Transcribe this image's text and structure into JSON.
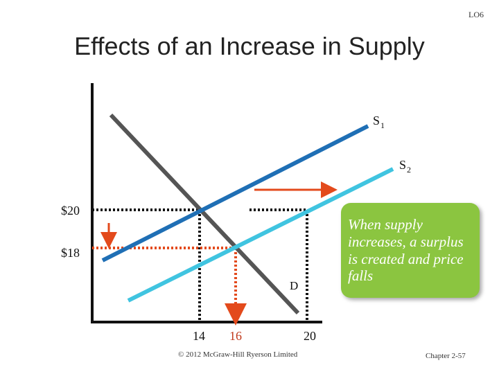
{
  "header": {
    "lo": "LO6"
  },
  "title": "Effects of an Increase in Supply",
  "chart": {
    "curves": {
      "s1": "S",
      "s1_sub": "1",
      "s2": "S",
      "s2_sub": "2",
      "d": "D"
    },
    "prices": {
      "p20": "$20",
      "p18": "$18"
    },
    "quantities": {
      "q14": "14",
      "q16": "16",
      "q20": "20"
    },
    "colors": {
      "demand": "#555555",
      "supply1": "#1f6fb5",
      "supply2": "#40c4e0",
      "arrow": "#e34a1c",
      "callout": "#8bc540"
    }
  },
  "callout": {
    "text": "When supply increases, a surplus is created and price falls"
  },
  "footer": {
    "copyright": "© 2012 McGraw-Hill Ryerson Limited",
    "page": "Chapter 2-57"
  }
}
